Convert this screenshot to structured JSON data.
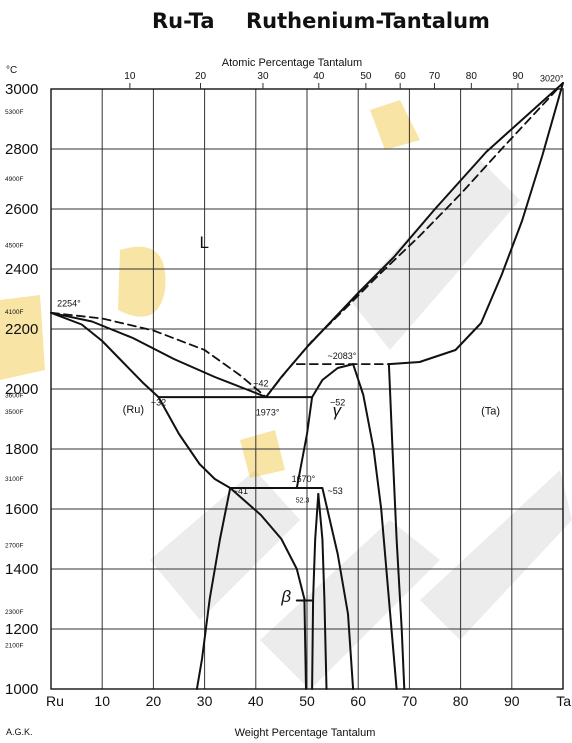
{
  "title": {
    "formula": "Ru-Ta",
    "name": "Ruthenium-Tantalum"
  },
  "chart_data": {
    "type": "line",
    "title": "Ru-Ta Ruthenium-Tantalum",
    "xlabel": "Weight Percentage Tantalum",
    "x2label": "Atomic Percentage Tantalum",
    "ylabel": "°C",
    "xlim": [
      0,
      100
    ],
    "ylim": [
      1000,
      3000
    ],
    "x_ticks": [
      "Ru",
      "10",
      "20",
      "30",
      "40",
      "50",
      "60",
      "70",
      "80",
      "90",
      "Ta"
    ],
    "x_tick_values": [
      0,
      10,
      20,
      30,
      40,
      50,
      60,
      70,
      80,
      90,
      100
    ],
    "top_ticks": [
      {
        "label": "10",
        "wt": 15.4
      },
      {
        "label": "20",
        "wt": 29.2
      },
      {
        "label": "30",
        "wt": 41.4
      },
      {
        "label": "40",
        "wt": 52.3
      },
      {
        "label": "50",
        "wt": 61.5
      },
      {
        "label": "60",
        "wt": 68.2
      },
      {
        "label": "70",
        "wt": 74.9
      },
      {
        "label": "80",
        "wt": 82.1
      },
      {
        "label": "90",
        "wt": 91.2
      }
    ],
    "y_ticks_c": [
      {
        "label": "3000",
        "value": 3000
      },
      {
        "label": "2800",
        "value": 2800
      },
      {
        "label": "2600",
        "value": 2600
      },
      {
        "label": "2400",
        "value": 2400
      },
      {
        "label": "2200",
        "value": 2200
      },
      {
        "label": "2000",
        "value": 2000
      },
      {
        "label": "1800",
        "value": 1800
      },
      {
        "label": "1600",
        "value": 1600
      },
      {
        "label": "1400",
        "value": 1400
      },
      {
        "label": "1200",
        "value": 1200
      },
      {
        "label": "1000",
        "value": 1000
      }
    ],
    "y_ticks_f": [
      {
        "label": "5300F",
        "value": 2927
      },
      {
        "label": "4900F",
        "value": 2704
      },
      {
        "label": "4500F",
        "value": 2482
      },
      {
        "label": "4100F",
        "value": 2260
      },
      {
        "label": "3600F",
        "value": 1982
      },
      {
        "label": "3500F",
        "value": 1927
      },
      {
        "label": "3100F",
        "value": 1704
      },
      {
        "label": "2700F",
        "value": 1482
      },
      {
        "label": "2300F",
        "value": 1260
      },
      {
        "label": "2100F",
        "value": 1149
      }
    ],
    "regions": [
      {
        "label": "L",
        "x": 29,
        "y": 2470,
        "size": "big"
      },
      {
        "label": "(Ru)",
        "x": 14,
        "y": 1920,
        "size": "normal"
      },
      {
        "label": "γ",
        "x": 55,
        "y": 1910,
        "size": "big"
      },
      {
        "label": "(Ta)",
        "x": 84,
        "y": 1915,
        "size": "normal"
      },
      {
        "label": "β",
        "x": 45,
        "y": 1290,
        "size": "big"
      }
    ],
    "annotations": [
      {
        "text": "2254°",
        "x": 1.2,
        "y": 2275,
        "size": "normal"
      },
      {
        "text": "3020°",
        "x": 95.5,
        "y": 3025,
        "size": "normal"
      },
      {
        "text": "~2083°",
        "x": 54,
        "y": 2100,
        "size": "normal"
      },
      {
        "text": "~42",
        "x": 39.5,
        "y": 2008,
        "size": "normal"
      },
      {
        "text": "~32",
        "x": 19.5,
        "y": 1945,
        "size": "normal"
      },
      {
        "text": "1973°",
        "x": 40,
        "y": 1912,
        "size": "normal"
      },
      {
        "text": "~52",
        "x": 54.5,
        "y": 1945,
        "size": "normal"
      },
      {
        "text": "1670°",
        "x": 47,
        "y": 1690,
        "size": "normal"
      },
      {
        "text": "~41",
        "x": 35.5,
        "y": 1650,
        "size": "normal"
      },
      {
        "text": "52.3",
        "x": 47.8,
        "y": 1622,
        "size": "small"
      },
      {
        "text": "~53",
        "x": 54,
        "y": 1650,
        "size": "normal"
      }
    ],
    "boundaries": [
      {
        "name": "liquidus-ru",
        "style": "solid",
        "points": [
          [
            0,
            2254
          ],
          [
            8,
            2225
          ],
          [
            16,
            2170
          ],
          [
            24,
            2100
          ],
          [
            32,
            2040
          ],
          [
            38,
            2000
          ],
          [
            42,
            1973
          ]
        ]
      },
      {
        "name": "solidus-ru",
        "style": "solid",
        "points": [
          [
            0,
            2254
          ],
          [
            6,
            2215
          ],
          [
            10,
            2160
          ],
          [
            14,
            2090
          ],
          [
            18,
            2020
          ],
          [
            21,
            1973
          ]
        ]
      },
      {
        "name": "liquidus-dashed-ru",
        "style": "dashed",
        "points": [
          [
            0,
            2254
          ],
          [
            10,
            2235
          ],
          [
            20,
            2195
          ],
          [
            30,
            2130
          ],
          [
            37,
            2045
          ],
          [
            42,
            1973
          ]
        ]
      },
      {
        "name": "eutectic-1973",
        "style": "solid",
        "points": [
          [
            21,
            1973
          ],
          [
            51,
            1973
          ]
        ]
      },
      {
        "name": "liquidus-gamma",
        "style": "solid",
        "points": [
          [
            42,
            1973
          ],
          [
            45,
            2040
          ],
          [
            50,
            2140
          ],
          [
            55,
            2230
          ],
          [
            60,
            2320
          ],
          [
            67,
            2440
          ],
          [
            75,
            2600
          ],
          [
            85,
            2790
          ],
          [
            100,
            3020
          ]
        ]
      },
      {
        "name": "solidus-gamma-left",
        "style": "solid",
        "points": [
          [
            51,
            1973
          ],
          [
            53,
            2030
          ],
          [
            56,
            2070
          ],
          [
            59,
            2083
          ]
        ]
      },
      {
        "name": "gamma-dashed-upper",
        "style": "dashed",
        "points": [
          [
            42,
            1973
          ],
          [
            46,
            2060
          ],
          [
            51,
            2160
          ],
          [
            57,
            2260
          ],
          [
            64,
            2380
          ],
          [
            72,
            2510
          ],
          [
            80,
            2650
          ],
          [
            88,
            2800
          ],
          [
            100,
            3020
          ]
        ]
      },
      {
        "name": "peritectic-2083",
        "style": "dashed",
        "points": [
          [
            48,
            2083
          ],
          [
            66,
            2083
          ]
        ]
      },
      {
        "name": "ta-solidus",
        "style": "solid",
        "points": [
          [
            66,
            2083
          ],
          [
            72,
            2090
          ],
          [
            79,
            2130
          ],
          [
            84,
            2220
          ],
          [
            88,
            2380
          ],
          [
            92,
            2560
          ],
          [
            96,
            2780
          ],
          [
            100,
            3020
          ]
        ]
      },
      {
        "name": "gamma-right-solvus",
        "style": "solid",
        "points": [
          [
            59,
            2083
          ],
          [
            61,
            1980
          ],
          [
            63,
            1800
          ],
          [
            64.5,
            1600
          ],
          [
            66,
            1300
          ],
          [
            67.5,
            1000
          ]
        ]
      },
      {
        "name": "ta-solvus",
        "style": "solid",
        "points": [
          [
            66,
            2083
          ],
          [
            66.7,
            1800
          ],
          [
            67.5,
            1500
          ],
          [
            68.5,
            1200
          ],
          [
            69,
            1000
          ]
        ]
      },
      {
        "name": "gamma-left-solvus",
        "style": "solid",
        "points": [
          [
            51,
            1973
          ],
          [
            50,
            1850
          ],
          [
            48,
            1670
          ]
        ]
      },
      {
        "name": "ru-solvus-upper",
        "style": "solid",
        "points": [
          [
            21,
            1973
          ],
          [
            25,
            1850
          ],
          [
            29,
            1750
          ],
          [
            32,
            1700
          ],
          [
            35,
            1670
          ]
        ]
      },
      {
        "name": "eutectoid-1670",
        "style": "solid",
        "points": [
          [
            35,
            1670
          ],
          [
            48,
            1670
          ]
        ]
      },
      {
        "name": "ru-solvus-lower",
        "style": "solid",
        "points": [
          [
            35,
            1670
          ],
          [
            33,
            1500
          ],
          [
            31,
            1300
          ],
          [
            29.5,
            1100
          ],
          [
            28.5,
            1000
          ]
        ]
      },
      {
        "name": "beta-left-upper",
        "style": "solid",
        "points": [
          [
            35,
            1670
          ],
          [
            41,
            1580
          ],
          [
            45,
            1500
          ],
          [
            48,
            1400
          ],
          [
            49.5,
            1300
          ]
        ]
      },
      {
        "name": "beta-left",
        "style": "solid",
        "points": [
          [
            49.5,
            1300
          ],
          [
            49.8,
            1000
          ]
        ]
      },
      {
        "name": "beta-apex-left",
        "style": "solid",
        "points": [
          [
            51,
            1000
          ],
          [
            51.2,
            1300
          ],
          [
            51.6,
            1500
          ],
          [
            52.2,
            1650
          ]
        ]
      },
      {
        "name": "beta-apex-right",
        "style": "solid",
        "points": [
          [
            52.2,
            1650
          ],
          [
            53,
            1500
          ],
          [
            53.4,
            1300
          ],
          [
            53.8,
            1000
          ]
        ]
      },
      {
        "name": "gamma-beta-right",
        "style": "solid",
        "points": [
          [
            48,
            1670
          ],
          [
            53,
            1670
          ],
          [
            56,
            1450
          ],
          [
            58,
            1250
          ],
          [
            59,
            1000
          ]
        ]
      },
      {
        "name": "beta-marker",
        "style": "solid",
        "points": [
          [
            48,
            1295
          ],
          [
            51,
            1295
          ]
        ]
      }
    ]
  },
  "footer": {
    "author": "A.G.K."
  }
}
